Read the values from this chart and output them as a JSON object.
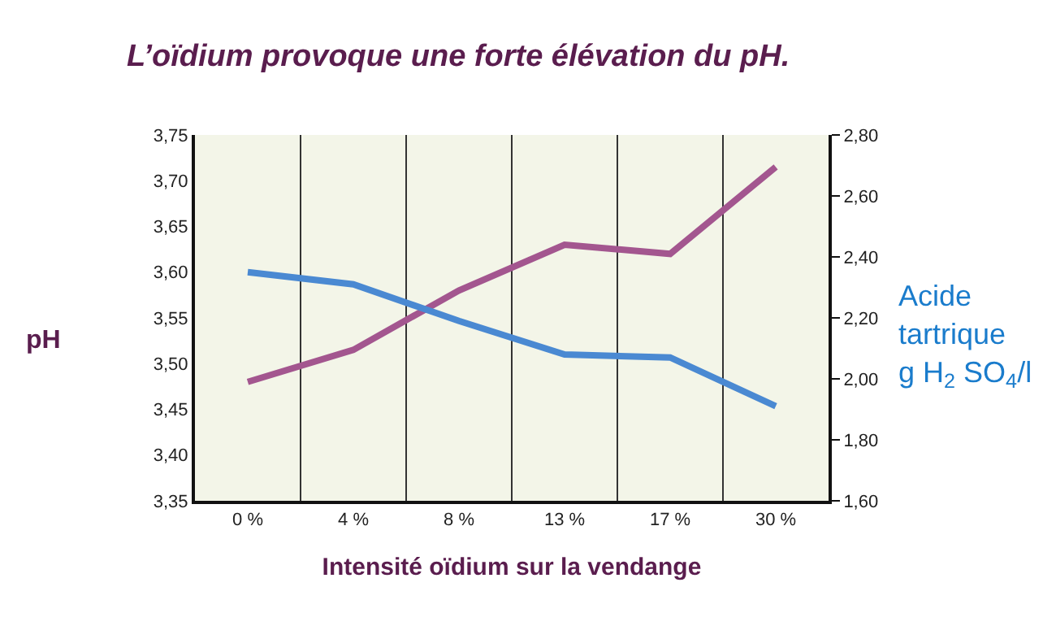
{
  "chart_data": {
    "type": "line",
    "title": "L’oïdium provoque une forte élévation du pH.",
    "xlabel": "Intensité oïdium sur la vendange",
    "ylabel": "pH",
    "y2label": "Acide\ntartrique\ng H$_{2}$ SO$_{4}$/l",
    "categories": [
      "0 %",
      "4 %",
      "8 %",
      "13 %",
      "17 %",
      "30 %"
    ],
    "series": [
      {
        "color": "#a3568f",
        "values": [
          3.48,
          3.515,
          3.58,
          3.63,
          3.62,
          3.715
        ]
      },
      {
        "color": "#4a89d2",
        "axis": "y2",
        "values": [
          2.35,
          2.31,
          2.19,
          2.08,
          2.07,
          1.91
        ]
      }
    ],
    "ylim": [
      3.35,
      3.75
    ],
    "yticks": [
      {
        "value": 3.35,
        "label": "3,35"
      },
      {
        "value": 3.4,
        "label": "3,40"
      },
      {
        "value": 3.45,
        "label": "3,45"
      },
      {
        "value": 3.5,
        "label": "3,50"
      },
      {
        "value": 3.55,
        "label": "3,55"
      },
      {
        "value": 3.6,
        "label": "3,60"
      },
      {
        "value": 3.65,
        "label": "3,65"
      },
      {
        "value": 3.7,
        "label": "3,70"
      },
      {
        "value": 3.75,
        "label": "3,75"
      }
    ],
    "y2lim": [
      1.6,
      2.8
    ],
    "y2ticks": [
      {
        "value": 1.6,
        "label": "1,60"
      },
      {
        "value": 1.8,
        "label": "1,80"
      },
      {
        "value": 2.0,
        "label": "2,00"
      },
      {
        "value": 2.2,
        "label": "2,20"
      },
      {
        "value": 2.4,
        "label": "2,40"
      },
      {
        "value": 2.6,
        "label": "2,60"
      },
      {
        "value": 2.8,
        "label": "2,80"
      }
    ],
    "grid": "x",
    "marker": "none",
    "line_style": "solid"
  }
}
